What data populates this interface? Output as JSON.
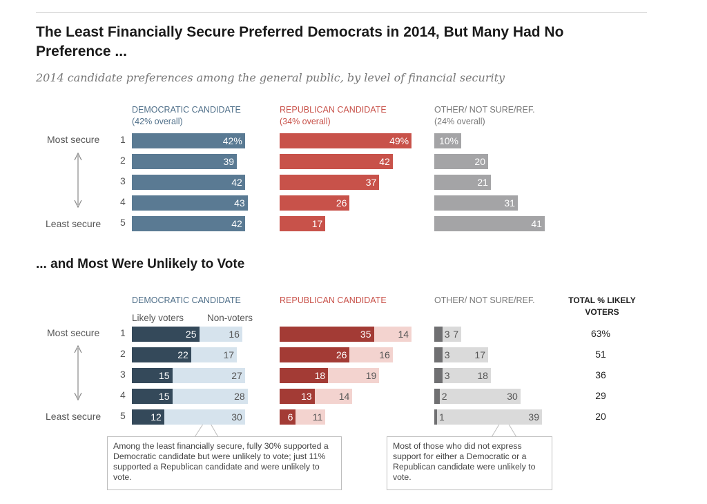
{
  "title": "The Least Financially Secure Preferred Democrats in 2014, But Many Had No Preference ...",
  "subtitle": "2014 candidate preferences among the general public, by level of financial security",
  "section2_title": "... and Most Were Unlikely to Vote",
  "axis": {
    "most_secure": "Most secure",
    "least_secure": "Least secure",
    "rows": [
      "1",
      "2",
      "3",
      "4",
      "5"
    ]
  },
  "headers1": {
    "dem": "DEMOCRATIC CANDIDATE",
    "dem_overall": "(42% overall)",
    "rep": "REPUBLICAN CANDIDATE",
    "rep_overall": "(34% overall)",
    "oth": "OTHER/ NOT SURE/REF.",
    "oth_overall": "(24% overall)"
  },
  "headers2": {
    "dem": "DEMOCRATIC CANDIDATE",
    "rep": "REPUBLICAN CANDIDATE",
    "oth": "OTHER/ NOT SURE/REF.",
    "total_line1": "TOTAL % LIKELY",
    "total_line2": "VOTERS",
    "likely": "Likely voters",
    "nonvoters": "Non-voters"
  },
  "colors": {
    "dem": "#5a7a93",
    "rep": "#c8524a",
    "oth": "#a4a4a6",
    "dem_likely": "#34495a",
    "dem_non": "#d6e3ed",
    "rep_likely": "#a33b35",
    "rep_non": "#f3d3cf",
    "oth_likely": "#707072",
    "oth_non": "#dadada",
    "dem_header": "#4f6f89",
    "rep_header": "#c8524a",
    "oth_header": "#777777"
  },
  "chart_data": [
    {
      "type": "bar",
      "categories": [
        "1",
        "2",
        "3",
        "4",
        "5"
      ],
      "series": [
        {
          "name": "DEMOCRATIC CANDIDATE",
          "values": [
            42,
            39,
            42,
            43,
            42
          ],
          "labels": [
            "42%",
            "39",
            "42",
            "43",
            "42"
          ]
        },
        {
          "name": "REPUBLICAN CANDIDATE",
          "values": [
            49,
            42,
            37,
            26,
            17
          ],
          "labels": [
            "49%",
            "42",
            "37",
            "26",
            "17"
          ]
        },
        {
          "name": "OTHER/ NOT SURE/REF.",
          "values": [
            10,
            20,
            21,
            31,
            41
          ],
          "labels": [
            "10%",
            "20",
            "21",
            "31",
            "41"
          ]
        }
      ]
    },
    {
      "type": "bar",
      "categories": [
        "1",
        "2",
        "3",
        "4",
        "5"
      ],
      "series": [
        {
          "name": "Likely voters",
          "group": "DEMOCRATIC CANDIDATE",
          "values": [
            25,
            22,
            15,
            15,
            12
          ]
        },
        {
          "name": "Non-voters",
          "group": "DEMOCRATIC CANDIDATE",
          "values": [
            16,
            17,
            27,
            28,
            30
          ]
        },
        {
          "name": "Likely voters",
          "group": "REPUBLICAN CANDIDATE",
          "values": [
            35,
            26,
            18,
            13,
            6
          ]
        },
        {
          "name": "Non-voters",
          "group": "REPUBLICAN CANDIDATE",
          "values": [
            14,
            16,
            19,
            14,
            11
          ]
        },
        {
          "name": "Likely voters",
          "group": "OTHER/ NOT SURE/REF.",
          "values": [
            3,
            3,
            3,
            2,
            1
          ]
        },
        {
          "name": "Non-voters",
          "group": "OTHER/ NOT SURE/REF.",
          "values": [
            7,
            17,
            18,
            30,
            39
          ]
        }
      ],
      "totals": {
        "name": "TOTAL % LIKELY VOTERS",
        "values": [
          63,
          51,
          36,
          29,
          20
        ],
        "labels": [
          "63%",
          "51",
          "36",
          "29",
          "20"
        ]
      }
    }
  ],
  "notes": {
    "dem_note": "Among the least financially secure, fully 30% supported a Democratic candidate but were unlikely to vote; just 11% supported a Republican candidate and were unlikely to vote.",
    "oth_note": "Most of those who did not express support for either a Democratic or a Republican candidate were unlikely to vote."
  }
}
